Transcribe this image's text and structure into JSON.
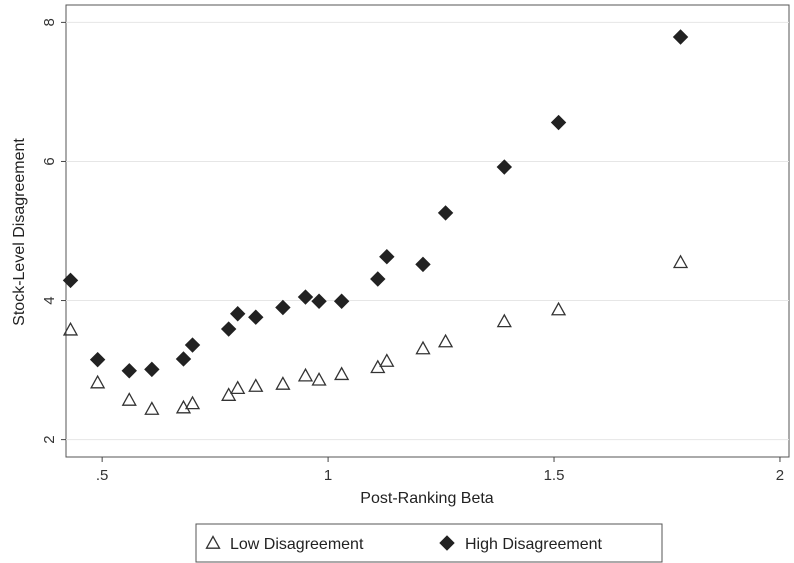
{
  "chart_data": {
    "type": "scatter",
    "title": "",
    "xlabel": "Post-Ranking Beta",
    "ylabel": "Stock-Level Disagreement",
    "xlim": [
      0.42,
      2.02
    ],
    "ylim": [
      1.75,
      8.25
    ],
    "xticks": [
      0.5,
      1,
      1.5,
      2
    ],
    "xtick_labels": [
      ".5",
      "1",
      "1.5",
      "2"
    ],
    "yticks": [
      2,
      4,
      6,
      8
    ],
    "ytick_labels": [
      "2",
      "4",
      "6",
      "8"
    ],
    "grid": "horizontal",
    "legend_position": "bottom",
    "series": [
      {
        "name": "Low Disagreement",
        "marker": "hollow-triangle",
        "color": "#333333",
        "x": [
          0.43,
          0.49,
          0.56,
          0.61,
          0.68,
          0.7,
          0.78,
          0.8,
          0.84,
          0.9,
          0.95,
          0.98,
          1.03,
          1.11,
          1.13,
          1.21,
          1.26,
          1.39,
          1.51,
          1.78
        ],
        "y": [
          3.58,
          2.82,
          2.57,
          2.44,
          2.46,
          2.52,
          2.64,
          2.74,
          2.77,
          2.8,
          2.92,
          2.86,
          2.94,
          3.04,
          3.13,
          3.31,
          3.41,
          3.7,
          3.87,
          4.55
        ]
      },
      {
        "name": "High Disagreement",
        "marker": "filled-diamond",
        "color": "#222222",
        "x": [
          0.43,
          0.49,
          0.56,
          0.61,
          0.68,
          0.7,
          0.78,
          0.8,
          0.84,
          0.9,
          0.95,
          0.98,
          1.03,
          1.11,
          1.13,
          1.21,
          1.26,
          1.39,
          1.51,
          1.78
        ],
        "y": [
          4.29,
          3.15,
          2.99,
          3.01,
          3.16,
          3.36,
          3.59,
          3.81,
          3.76,
          3.9,
          4.05,
          3.99,
          3.99,
          4.31,
          4.63,
          4.52,
          5.26,
          5.92,
          6.56,
          7.79
        ]
      }
    ]
  }
}
